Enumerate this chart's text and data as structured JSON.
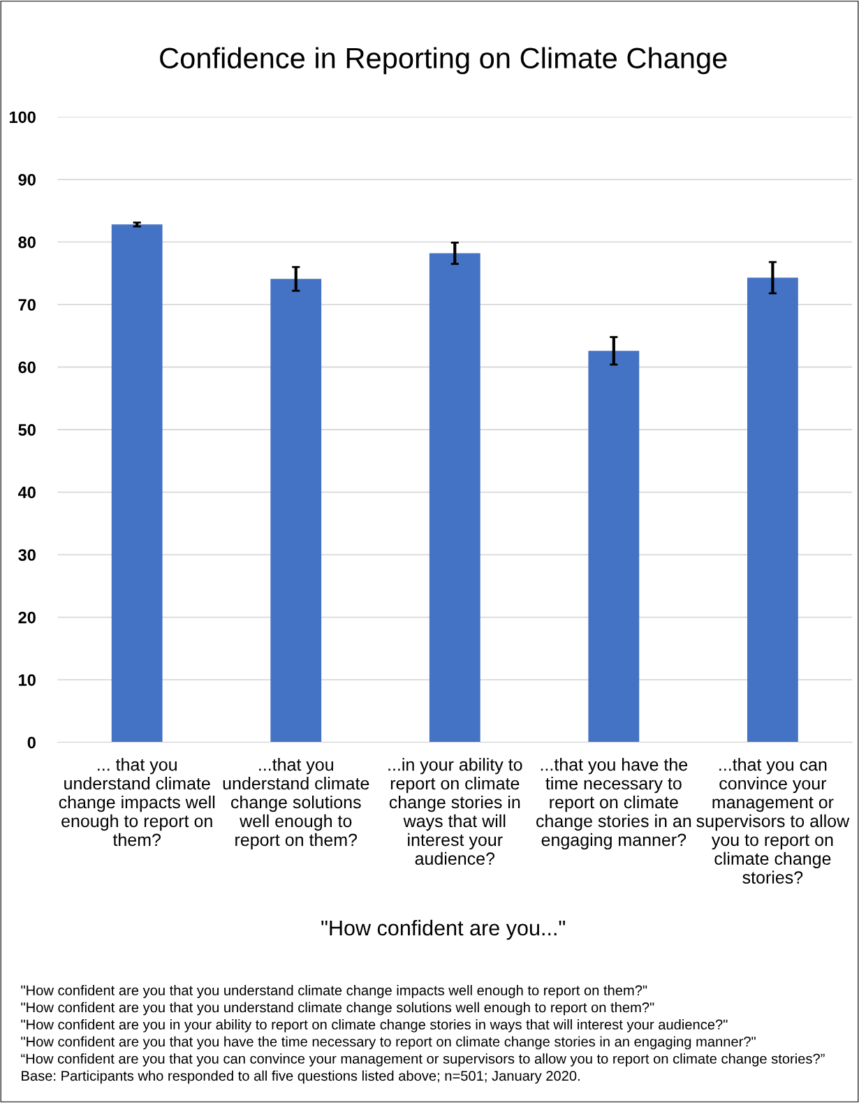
{
  "chart_data": {
    "type": "bar",
    "title": "Confidence in Reporting on Climate Change",
    "xlabel": "\"How confident are you...\"",
    "categories": [
      "... that you understand climate change impacts well enough to report on them?",
      "...that you understand climate change solutions well enough to report on them?",
      "...in your ability to report on climate change stories in ways that will interest your audience?",
      "...that you have the time necessary to report on climate change stories in an engaging manner?",
      "...that you can convince your management or supervisors to allow you to report on climate change stories?"
    ],
    "values": [
      82.8,
      74.1,
      78.2,
      62.6,
      74.3
    ],
    "errors": [
      0.3,
      1.9,
      1.7,
      2.2,
      2.5
    ],
    "color": "#4472c4",
    "ylim": [
      0,
      100
    ],
    "yticks": [
      0,
      10,
      20,
      30,
      40,
      50,
      60,
      70,
      80,
      90,
      100
    ],
    "grid": "y",
    "legend": false,
    "annotations": [
      "\"How confident are you that you understand climate change impacts well enough to report on them?\"",
      "\"How confident are you that you understand climate change solutions well enough to report on them?\"",
      "\"How confident are you in your ability to report on climate change stories in ways that will interest your audience?\"",
      "\"How confident are you that you have the time necessary to report on climate change stories in an engaging manner?\"",
      "“How confident are you that you can convince your management or supervisors to allow you to report on climate change stories?”",
      "Base: Participants who responded to all five questions listed above; n=501; January 2020."
    ]
  }
}
